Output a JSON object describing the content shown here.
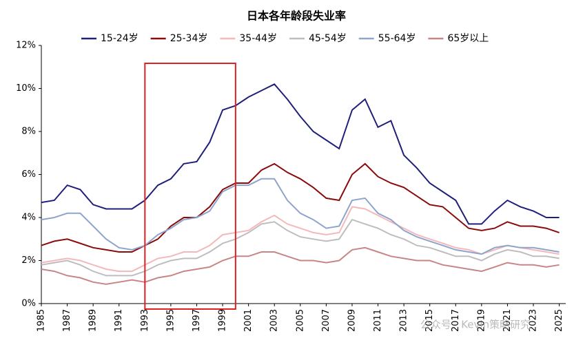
{
  "chart_data": {
    "type": "line",
    "title": "日本各年龄段失业率",
    "x": [
      1985,
      1986,
      1987,
      1988,
      1989,
      1990,
      1991,
      1992,
      1993,
      1994,
      1995,
      1996,
      1997,
      1998,
      1999,
      2000,
      2001,
      2002,
      2003,
      2004,
      2005,
      2006,
      2007,
      2008,
      2009,
      2010,
      2011,
      2012,
      2013,
      2014,
      2015,
      2016,
      2017,
      2018,
      2019,
      2020,
      2021,
      2022,
      2023,
      2024,
      2025
    ],
    "series": [
      {
        "name": "15-24岁",
        "color": "#1f1f7a",
        "values": [
          4.7,
          4.8,
          5.5,
          5.3,
          4.6,
          4.4,
          4.4,
          4.4,
          4.8,
          5.5,
          5.8,
          6.5,
          6.6,
          7.5,
          9.0,
          9.2,
          9.6,
          9.9,
          10.2,
          9.5,
          8.7,
          8.0,
          7.6,
          7.2,
          9.0,
          9.5,
          8.2,
          8.5,
          6.9,
          6.3,
          5.6,
          5.2,
          4.8,
          3.7,
          3.7,
          4.3,
          4.8,
          4.5,
          4.3,
          4.0,
          4.0
        ]
      },
      {
        "name": "25-34岁",
        "color": "#8b0a0a",
        "values": [
          2.7,
          2.9,
          3.0,
          2.8,
          2.6,
          2.5,
          2.4,
          2.4,
          2.7,
          3.0,
          3.6,
          4.0,
          4.0,
          4.5,
          5.3,
          5.6,
          5.6,
          6.2,
          6.5,
          6.1,
          5.8,
          5.4,
          4.9,
          4.8,
          6.0,
          6.5,
          5.9,
          5.6,
          5.4,
          5.0,
          4.6,
          4.5,
          4.0,
          3.5,
          3.4,
          3.5,
          3.8,
          3.6,
          3.6,
          3.5,
          3.3
        ]
      },
      {
        "name": "35-44岁",
        "color": "#f4b8b8",
        "values": [
          1.9,
          2.0,
          2.1,
          2.0,
          1.8,
          1.6,
          1.5,
          1.5,
          1.8,
          2.1,
          2.2,
          2.4,
          2.4,
          2.7,
          3.2,
          3.3,
          3.4,
          3.8,
          4.1,
          3.7,
          3.5,
          3.3,
          3.2,
          3.3,
          4.5,
          4.4,
          4.1,
          3.8,
          3.5,
          3.2,
          3.0,
          2.8,
          2.6,
          2.5,
          2.3,
          2.5,
          2.7,
          2.6,
          2.5,
          2.4,
          2.3
        ]
      },
      {
        "name": "45-54岁",
        "color": "#bdbdbd",
        "values": [
          1.8,
          1.9,
          2.0,
          1.8,
          1.5,
          1.3,
          1.3,
          1.3,
          1.5,
          1.8,
          2.0,
          2.1,
          2.1,
          2.4,
          2.8,
          3.0,
          3.3,
          3.7,
          3.8,
          3.4,
          3.1,
          3.0,
          2.9,
          3.0,
          3.9,
          3.7,
          3.5,
          3.2,
          3.0,
          2.7,
          2.6,
          2.4,
          2.2,
          2.2,
          2.0,
          2.3,
          2.5,
          2.4,
          2.2,
          2.2,
          2.1
        ]
      },
      {
        "name": "55-64岁",
        "color": "#8ea4cc",
        "values": [
          3.9,
          4.0,
          4.2,
          4.2,
          3.6,
          3.0,
          2.6,
          2.5,
          2.7,
          3.2,
          3.5,
          3.9,
          4.0,
          4.3,
          5.2,
          5.5,
          5.5,
          5.8,
          5.8,
          4.8,
          4.2,
          3.9,
          3.5,
          3.6,
          4.8,
          4.9,
          4.2,
          3.9,
          3.4,
          3.1,
          2.9,
          2.7,
          2.5,
          2.4,
          2.3,
          2.6,
          2.7,
          2.6,
          2.6,
          2.5,
          2.4
        ]
      },
      {
        "name": "65岁以上",
        "color": "#c98585",
        "values": [
          1.6,
          1.5,
          1.3,
          1.2,
          1.0,
          0.9,
          1.0,
          1.1,
          1.0,
          1.2,
          1.3,
          1.5,
          1.6,
          1.7,
          2.0,
          2.2,
          2.2,
          2.4,
          2.4,
          2.2,
          2.0,
          2.0,
          1.9,
          2.0,
          2.5,
          2.6,
          2.4,
          2.2,
          2.1,
          2.0,
          2.0,
          1.8,
          1.7,
          1.6,
          1.5,
          1.7,
          1.9,
          1.8,
          1.8,
          1.7,
          1.8
        ]
      }
    ],
    "xlim": [
      1985,
      2025.5
    ],
    "xticks": [
      1985,
      1987,
      1989,
      1991,
      1993,
      1995,
      1997,
      1999,
      2001,
      2003,
      2005,
      2007,
      2009,
      2011,
      2013,
      2015,
      2017,
      2019,
      2021,
      2023,
      2025
    ],
    "ylim": [
      0,
      12
    ],
    "yticks": [
      {
        "value": 0,
        "label": "0%"
      },
      {
        "value": 2,
        "label": "2%"
      },
      {
        "value": 4,
        "label": "4%"
      },
      {
        "value": 6,
        "label": "6%"
      },
      {
        "value": 8,
        "label": "8%"
      },
      {
        "value": 10,
        "label": "10%"
      },
      {
        "value": 12,
        "label": "12%"
      }
    ],
    "highlight": {
      "x": [
        1993,
        2000
      ],
      "color": "#e02020"
    },
    "watermark": "公众号 · Kevin策略研究"
  }
}
